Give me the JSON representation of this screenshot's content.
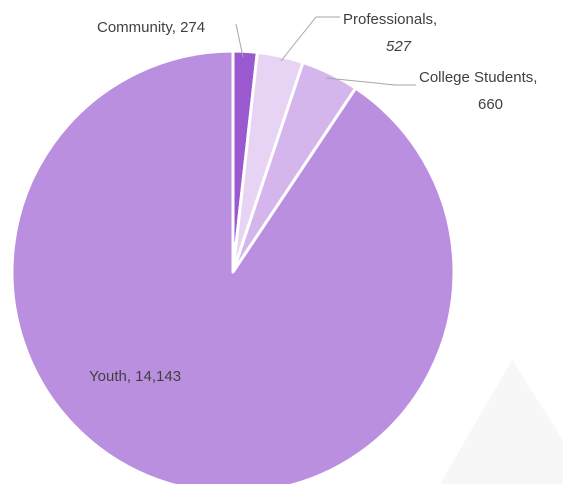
{
  "chart_data": {
    "type": "pie",
    "title": "",
    "categories": [
      "Community",
      "Professionals",
      "College Students",
      "Youth"
    ],
    "values": [
      274,
      527,
      660,
      14143
    ],
    "value_labels": [
      "274",
      "527",
      "660",
      "14,143"
    ],
    "colors": [
      "#9b59d0",
      "#e7d4f4",
      "#d4b6ec",
      "#bb8fe0"
    ],
    "start_angle_deg": 0,
    "direction": "clockwise",
    "slice_border_color": "#ffffff",
    "legend": "none"
  }
}
